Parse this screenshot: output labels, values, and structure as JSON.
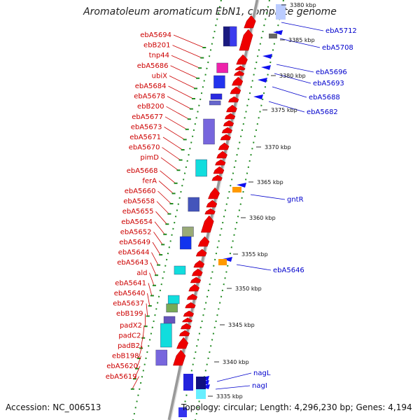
{
  "title": "Aromatoleum aromaticum EbN1, complete genome",
  "accession": "Accession: NC_006513",
  "topology": "Topology: circular; Length: 4,296,230 bp; Genes: 4,194",
  "colors": {
    "forward_gene": "#ee0000",
    "reverse_gene": "#1010ee",
    "left_label": "#cc0000",
    "right_label": "#0000cc",
    "dotted_track": "#228b22",
    "backbone": "#999999"
  },
  "scale_ticks": [
    {
      "label": "3380 kbp",
      "kbp": 3380
    },
    {
      "label": "3385 kbp",
      "kbp": 3385
    },
    {
      "label": "3380 kbp",
      "kbp": 3380.5
    },
    {
      "label": "3375 kbp",
      "kbp": 3375
    },
    {
      "label": "3370 kbp",
      "kbp": 3370
    },
    {
      "label": "3365 kbp",
      "kbp": 3365
    },
    {
      "label": "3360 kbp",
      "kbp": 3360
    },
    {
      "label": "3355 kbp",
      "kbp": 3355
    },
    {
      "label": "3350 kbp",
      "kbp": 3350
    },
    {
      "label": "3345 kbp",
      "kbp": 3345
    },
    {
      "label": "3340 kbp",
      "kbp": 3340
    },
    {
      "label": "3335 kbp",
      "kbp": 3335
    }
  ],
  "left_genes": [
    "ebA5694",
    "ebB201",
    "tnp44",
    "ebA5686",
    "ubiX",
    "ebA5684",
    "ebA5678",
    "ebB200",
    "ebA5677",
    "ebA5673",
    "ebA5671",
    "ebA5670",
    "pimD",
    "ebA5668",
    "ferA",
    "ebA5660",
    "ebA5658",
    "ebA5655",
    "ebA5654",
    "ebA5652",
    "ebA5649",
    "ebA5644",
    "ebA5643",
    "ald",
    "ebA5641",
    "ebA5640",
    "ebA5637",
    "ebB199",
    "padX2",
    "padC2",
    "padB2",
    "ebB198",
    "ebA5620",
    "ebA5619"
  ],
  "right_genes": [
    "ebA5712",
    "ebA5708",
    "ebA5696",
    "ebA5693",
    "ebA5688",
    "ebA5682",
    "gntR",
    "ebA5646",
    "nagL",
    "nagI"
  ]
}
